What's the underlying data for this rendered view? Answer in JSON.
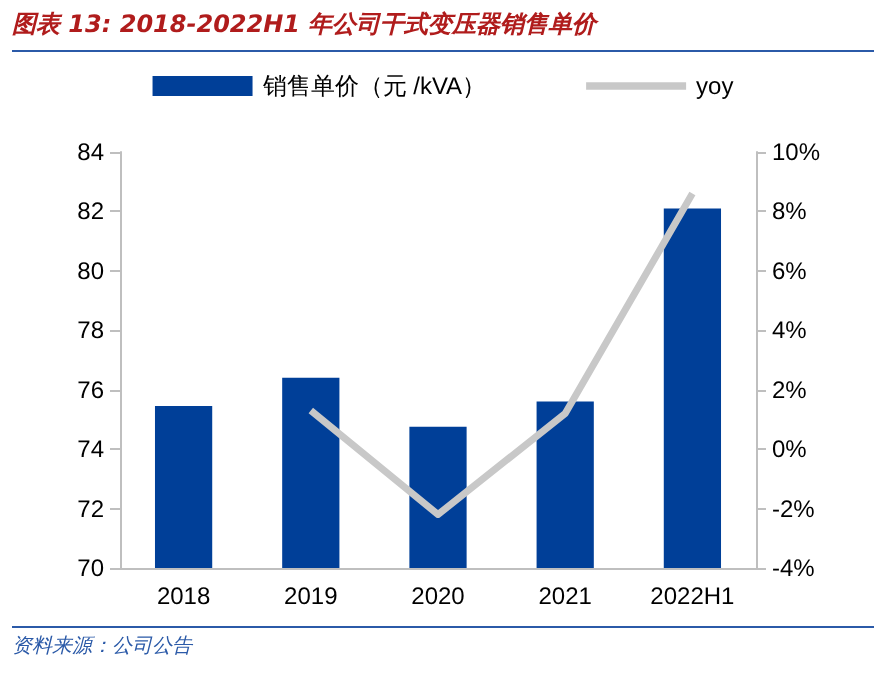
{
  "chart_data": {
    "type": "bar",
    "title": "图表 13:  2018-2022H1 年公司干式变压器销售单价",
    "categories": [
      "2018",
      "2019",
      "2020",
      "2021",
      "2022H1"
    ],
    "series": [
      {
        "name": "销售单价（元 /kVA）",
        "color": "#003f98",
        "values": [
          75.45,
          76.4,
          74.75,
          75.6,
          82.1
        ]
      },
      {
        "name": "yoy",
        "type": "line",
        "axis": "y2",
        "color": "#c8c8c8",
        "marker": "none",
        "values": [
          null,
          1.3,
          -2.2,
          1.2,
          8.6
        ]
      }
    ],
    "ylim": [
      70,
      84
    ],
    "yticks": [
      70,
      72,
      74,
      76,
      78,
      80,
      82,
      84
    ],
    "y2lim": [
      -4,
      10
    ],
    "y2ticks": [
      {
        "value": -4,
        "label": "-4%"
      },
      {
        "value": -2,
        "label": "-2%"
      },
      {
        "value": 0,
        "label": "0%"
      },
      {
        "value": 2,
        "label": "2%"
      },
      {
        "value": 4,
        "label": "4%"
      },
      {
        "value": 6,
        "label": "6%"
      },
      {
        "value": 8,
        "label": "8%"
      },
      {
        "value": 10,
        "label": "10%"
      }
    ],
    "grid": false,
    "legend": "top",
    "annotations": [
      "资料来源：公司公告"
    ]
  }
}
